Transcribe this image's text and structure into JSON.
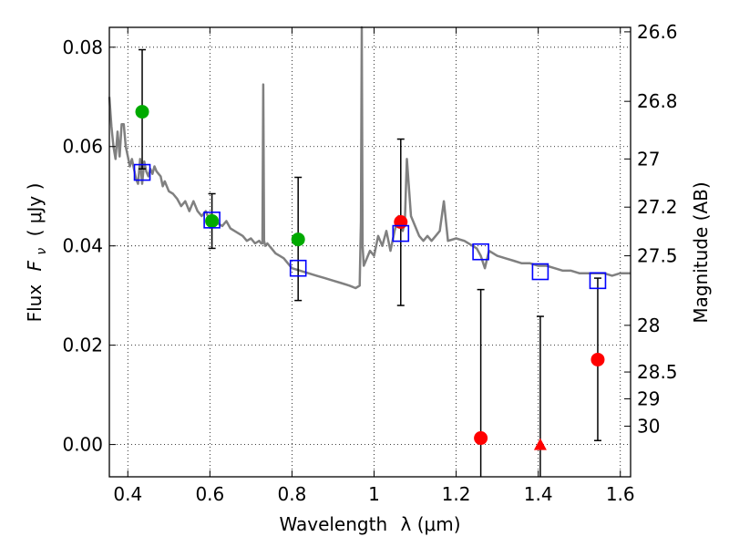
{
  "chart_data": {
    "type": "scatter",
    "xlabel_text": "Wavelength",
    "xlabel_math": "λ (μm)",
    "ylabel_text": "Flux",
    "ylabel_math": "F",
    "ylabel_sub": "ν",
    "ylabel_unit": "( μJy )",
    "y2label": "Magnitude (AB)",
    "xlim": [
      0.355,
      1.625
    ],
    "ylim": [
      -0.0065,
      0.084
    ],
    "grid": true,
    "x_ticks": [
      {
        "value": 0.4,
        "label": "0.4"
      },
      {
        "value": 0.6,
        "label": "0.6"
      },
      {
        "value": 0.8,
        "label": "0.8"
      },
      {
        "value": 1.0,
        "label": "1"
      },
      {
        "value": 1.2,
        "label": "1.2"
      },
      {
        "value": 1.4,
        "label": "1.4"
      },
      {
        "value": 1.6,
        "label": "1.6"
      }
    ],
    "y_ticks": [
      {
        "value": 0.0,
        "label": "0.00"
      },
      {
        "value": 0.02,
        "label": "0.02"
      },
      {
        "value": 0.04,
        "label": "0.04"
      },
      {
        "value": 0.06,
        "label": "0.06"
      },
      {
        "value": 0.08,
        "label": "0.08"
      }
    ],
    "y2_ticks": [
      {
        "flux": 0.0831,
        "label": "26.6"
      },
      {
        "flux": 0.0691,
        "label": "26.8"
      },
      {
        "flux": 0.0575,
        "label": "27"
      },
      {
        "flux": 0.0478,
        "label": "27.2"
      },
      {
        "flux": 0.038,
        "label": "27.5"
      },
      {
        "flux": 0.024,
        "label": "28"
      },
      {
        "flux": 0.0146,
        "label": "28.5"
      },
      {
        "flux": 0.0092,
        "label": "29"
      },
      {
        "flux": 0.0037,
        "label": "30"
      }
    ],
    "sed_model": {
      "color": "#808080",
      "x": [
        0.355,
        0.36,
        0.365,
        0.37,
        0.375,
        0.38,
        0.385,
        0.39,
        0.395,
        0.4,
        0.405,
        0.41,
        0.415,
        0.42,
        0.425,
        0.43,
        0.435,
        0.44,
        0.445,
        0.45,
        0.455,
        0.46,
        0.465,
        0.47,
        0.475,
        0.48,
        0.485,
        0.49,
        0.5,
        0.51,
        0.52,
        0.53,
        0.54,
        0.55,
        0.56,
        0.57,
        0.58,
        0.59,
        0.6,
        0.61,
        0.62,
        0.63,
        0.64,
        0.65,
        0.66,
        0.67,
        0.68,
        0.69,
        0.7,
        0.71,
        0.72,
        0.725,
        0.728,
        0.73,
        0.732,
        0.735,
        0.74,
        0.75,
        0.76,
        0.77,
        0.78,
        0.79,
        0.8,
        0.82,
        0.84,
        0.86,
        0.88,
        0.9,
        0.92,
        0.94,
        0.955,
        0.965,
        0.968,
        0.97,
        0.972,
        0.975,
        0.98,
        0.99,
        1.0,
        1.01,
        1.02,
        1.03,
        1.04,
        1.05,
        1.06,
        1.07,
        1.075,
        1.08,
        1.09,
        1.1,
        1.11,
        1.12,
        1.13,
        1.14,
        1.15,
        1.16,
        1.17,
        1.18,
        1.2,
        1.22,
        1.24,
        1.25,
        1.26,
        1.27,
        1.28,
        1.3,
        1.32,
        1.34,
        1.36,
        1.38,
        1.4,
        1.42,
        1.44,
        1.46,
        1.48,
        1.5,
        1.52,
        1.54,
        1.56,
        1.58,
        1.6,
        1.625
      ],
      "y": [
        0.07,
        0.064,
        0.06,
        0.0575,
        0.063,
        0.058,
        0.0645,
        0.0645,
        0.06,
        0.058,
        0.056,
        0.0575,
        0.0555,
        0.0535,
        0.0525,
        0.0575,
        0.0525,
        0.057,
        0.055,
        0.054,
        0.0555,
        0.0545,
        0.056,
        0.055,
        0.0545,
        0.054,
        0.052,
        0.053,
        0.051,
        0.0505,
        0.0495,
        0.048,
        0.049,
        0.047,
        0.049,
        0.047,
        0.046,
        0.047,
        0.045,
        0.0455,
        0.0445,
        0.044,
        0.045,
        0.0435,
        0.043,
        0.0425,
        0.042,
        0.041,
        0.0415,
        0.0405,
        0.041,
        0.0405,
        0.0405,
        0.0725,
        0.041,
        0.04,
        0.0405,
        0.0395,
        0.0385,
        0.038,
        0.0375,
        0.0365,
        0.0355,
        0.035,
        0.0345,
        0.034,
        0.0335,
        0.033,
        0.0325,
        0.032,
        0.0315,
        0.032,
        0.045,
        0.084,
        0.04,
        0.036,
        0.037,
        0.039,
        0.038,
        0.042,
        0.04,
        0.043,
        0.039,
        0.043,
        0.046,
        0.043,
        0.045,
        0.0575,
        0.046,
        0.044,
        0.042,
        0.041,
        0.042,
        0.041,
        0.042,
        0.043,
        0.049,
        0.041,
        0.0415,
        0.041,
        0.04,
        0.0395,
        0.038,
        0.0355,
        0.039,
        0.038,
        0.0375,
        0.037,
        0.0365,
        0.0365,
        0.036,
        0.036,
        0.0355,
        0.035,
        0.035,
        0.0345,
        0.0345,
        0.0345,
        0.0345,
        0.034,
        0.0345,
        0.0345
      ]
    },
    "series": [
      {
        "color": "#00aa00",
        "marker": "circle",
        "points": [
          {
            "x": 0.435,
            "y": 0.067,
            "err_lo": 0.0555,
            "err_hi": 0.0795
          },
          {
            "x": 0.605,
            "y": 0.045,
            "err_lo": 0.0395,
            "err_hi": 0.0505
          },
          {
            "x": 0.815,
            "y": 0.0413,
            "err_lo": 0.029,
            "err_hi": 0.0538
          }
        ]
      },
      {
        "color": "#ff0000",
        "marker": "circle",
        "points": [
          {
            "x": 1.065,
            "y": 0.0448,
            "err_lo": 0.028,
            "err_hi": 0.0615
          },
          {
            "x": 1.26,
            "y": 0.0013,
            "err_lo": -0.0065,
            "err_hi": 0.0312
          },
          {
            "x": 1.545,
            "y": 0.0171,
            "err_lo": 0.0008,
            "err_hi": 0.0335
          }
        ]
      },
      {
        "color": "#ff0000",
        "marker": "triangle",
        "points": [
          {
            "x": 1.405,
            "y": 0.0,
            "err_lo": -0.0065,
            "err_hi": 0.0258
          }
        ]
      },
      {
        "color": "#0000ff",
        "marker": "square-open",
        "points": [
          {
            "x": 0.435,
            "y": 0.0548
          },
          {
            "x": 0.605,
            "y": 0.0452
          },
          {
            "x": 0.815,
            "y": 0.0355
          },
          {
            "x": 1.065,
            "y": 0.0425
          },
          {
            "x": 1.26,
            "y": 0.0388
          },
          {
            "x": 1.405,
            "y": 0.0348
          },
          {
            "x": 1.545,
            "y": 0.033
          }
        ]
      }
    ]
  }
}
